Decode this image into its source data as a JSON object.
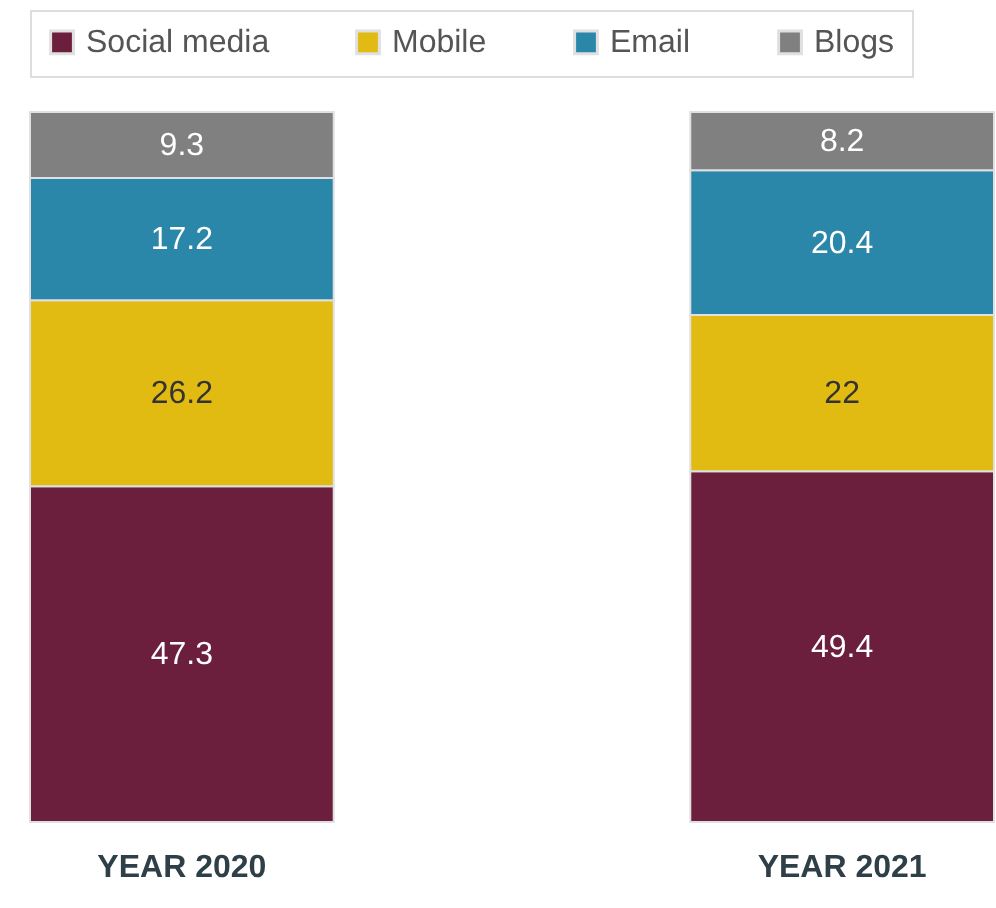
{
  "chart_data": {
    "type": "bar",
    "stacked": true,
    "categories": [
      "YEAR 2020",
      "YEAR 2021"
    ],
    "series": [
      {
        "name": "Social media",
        "color": "#6b1f3d",
        "values": [
          47.3,
          49.4
        ]
      },
      {
        "name": "Mobile",
        "color": "#e2bb12",
        "values": [
          26.2,
          22
        ]
      },
      {
        "name": "Email",
        "color": "#2b87aa",
        "values": [
          17.2,
          20.4
        ]
      },
      {
        "name": "Blogs",
        "color": "#808080",
        "values": [
          9.3,
          8.2
        ]
      }
    ],
    "data_labels": true,
    "legend": "top"
  }
}
